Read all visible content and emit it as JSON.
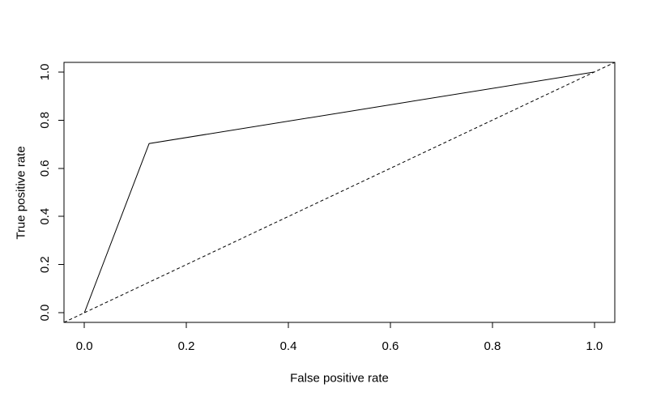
{
  "figure": {
    "background_color": "#ffffff",
    "axis_color": "#000000",
    "text_color": "#000000"
  },
  "chart_data": {
    "type": "line",
    "title": "",
    "xlabel": "False positive rate",
    "ylabel": "True positive rate",
    "xlim": [
      -0.04,
      1.04
    ],
    "ylim": [
      -0.04,
      1.04
    ],
    "x_ticks": [
      "0.0",
      "0.2",
      "0.4",
      "0.6",
      "0.8",
      "1.0"
    ],
    "y_ticks": [
      "0.0",
      "0.2",
      "0.4",
      "0.6",
      "0.8",
      "1.0"
    ],
    "y_tick_label_rotation": -90,
    "grid": false,
    "legend": "none",
    "series": [
      {
        "name": "roc-curve",
        "line_style": "solid",
        "color": "#000000",
        "points": [
          [
            0.0,
            0.0
          ],
          [
            0.127,
            0.703
          ],
          [
            1.0,
            1.0
          ]
        ]
      },
      {
        "name": "chance-diagonal",
        "line_style": "dashed",
        "color": "#000000",
        "points": [
          [
            -0.04,
            -0.04
          ],
          [
            1.04,
            1.04
          ]
        ]
      }
    ]
  }
}
